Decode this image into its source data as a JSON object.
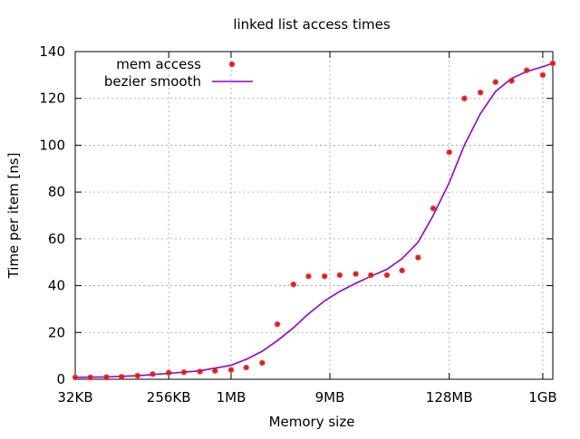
{
  "chart_data": {
    "type": "scatter",
    "title": "linked list access times",
    "xlabel": "Memory size",
    "ylabel": "Time per item [ns]",
    "x_scale": "log2",
    "x_ticks": [
      {
        "label": "32KB",
        "bytes": 32768
      },
      {
        "label": "256KB",
        "bytes": 262144
      },
      {
        "label": "1MB",
        "bytes": 1048576
      },
      {
        "label": "9MB",
        "bytes": 9437184
      },
      {
        "label": "128MB",
        "bytes": 134217728
      },
      {
        "label": "1GB",
        "bytes": 1073741824
      }
    ],
    "xlim_bytes": [
      32768,
      1342177280
    ],
    "ylim": [
      0,
      140
    ],
    "y_ticks": [
      0,
      20,
      40,
      60,
      80,
      100,
      120,
      140
    ],
    "grid": true,
    "legend_position": "top-left",
    "colors": {
      "points": "#e41a1c",
      "line": "#9400d3",
      "grid": "#a0a0a0"
    },
    "series": [
      {
        "name": "mem access",
        "style": "points",
        "x_bytes": [
          32768,
          45875,
          65536,
          91750,
          131072,
          183501,
          262144,
          367002,
          524288,
          734003,
          1048576,
          1468006,
          2097152,
          2936013,
          4194304,
          5872026,
          8388608,
          11744051,
          16777216,
          23488102,
          33554432,
          46976205,
          67108864,
          93952410,
          134217728,
          187904819,
          268435456,
          375809638,
          536870912,
          751619277,
          1073741824,
          1342177280
        ],
        "y": [
          0.8,
          0.8,
          0.9,
          1.0,
          1.5,
          2.2,
          2.8,
          3.0,
          3.3,
          3.6,
          4.0,
          5.0,
          7.0,
          23.5,
          40.5,
          44.0,
          44.0,
          44.5,
          45.0,
          44.5,
          44.5,
          46.5,
          52.0,
          73.0,
          97.0,
          120.0,
          122.5,
          127.0,
          127.5,
          132.0,
          130.0,
          135.0
        ]
      },
      {
        "name": "bezier smooth",
        "style": "line",
        "x_bytes": [
          32768,
          65536,
          131072,
          262144,
          524288,
          1048576,
          1468006,
          2097152,
          2936013,
          4194304,
          5872026,
          8388608,
          11744051,
          16777216,
          23488102,
          33554432,
          46976205,
          67108864,
          93952410,
          134217728,
          187904819,
          268435456,
          375809638,
          536870912,
          751619277,
          1073741824,
          1342177280
        ],
        "y": [
          0.8,
          1.0,
          1.5,
          2.5,
          3.6,
          6.0,
          8.5,
          12.0,
          16.5,
          22.0,
          28.0,
          33.5,
          37.5,
          41.0,
          44.0,
          47.0,
          51.5,
          58.5,
          70.0,
          84.0,
          100.0,
          113.5,
          123.0,
          128.5,
          131.5,
          133.5,
          135.0
        ]
      }
    ]
  }
}
